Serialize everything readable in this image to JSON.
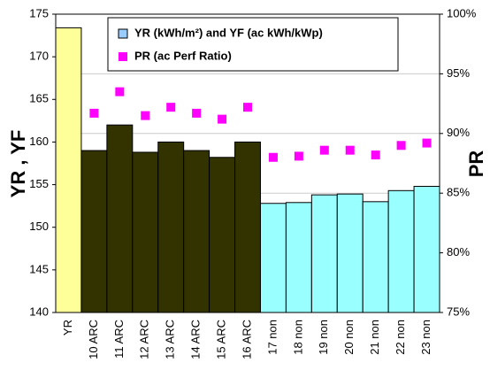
{
  "chart_data": {
    "type": "bar",
    "categories": [
      "YR",
      "10 ARC",
      "11 ARC",
      "12 ARC",
      "13 ARC",
      "14 ARC",
      "15 ARC",
      "16 ARC",
      "17 non",
      "18 non",
      "19 non",
      "20 non",
      "21 non",
      "22 non",
      "23 non"
    ],
    "series": [
      {
        "name": "YR (kWh/m²) and YF (ac kWh/kWp)",
        "color": "#99ccff",
        "colors": [
          "#ffff99",
          "#333300",
          "#333300",
          "#333300",
          "#333300",
          "#333300",
          "#333300",
          "#333300",
          "#99ffff",
          "#99ffff",
          "#99ffff",
          "#99ffff",
          "#99ffff",
          "#99ffff",
          "#99ffff"
        ],
        "values": [
          173.4,
          159.0,
          162.0,
          158.8,
          160.0,
          159.0,
          158.2,
          160.0,
          152.8,
          152.9,
          153.8,
          153.9,
          153.0,
          154.3,
          154.8
        ]
      },
      {
        "name": "PR (ac Perf Ratio)",
        "type": "scatter",
        "color": "#ff00ff",
        "axis": "y2",
        "values": [
          null,
          91.7,
          93.5,
          91.5,
          92.2,
          91.7,
          91.2,
          92.2,
          88.0,
          88.1,
          88.6,
          88.6,
          88.2,
          89.0,
          89.2
        ]
      }
    ],
    "y_label": "YR , YF",
    "y2_label": "PR",
    "ylim": [
      140,
      175
    ],
    "yticks": [
      140,
      145,
      150,
      155,
      160,
      165,
      170,
      175
    ],
    "y2lim": [
      75,
      100
    ],
    "y2ticks": [
      {
        "value": 75,
        "label": "75%"
      },
      {
        "value": 80,
        "label": "80%"
      },
      {
        "value": 85,
        "label": "85%"
      },
      {
        "value": 90,
        "label": "90%"
      },
      {
        "value": 95,
        "label": "95%"
      },
      {
        "value": 100,
        "label": "100%"
      }
    ],
    "grid": true
  }
}
